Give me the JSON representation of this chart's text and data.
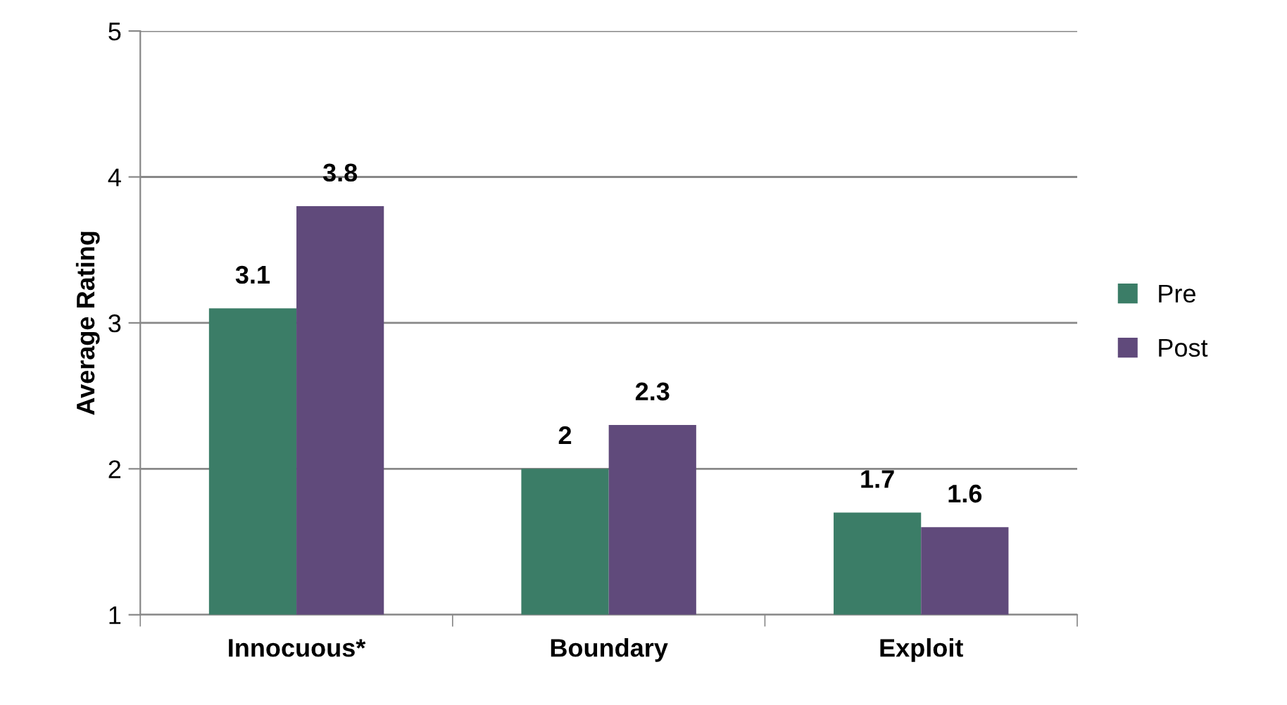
{
  "chart_data": {
    "type": "bar",
    "ylabel": "Average Rating",
    "categories": [
      "Innocuous*",
      "Boundary",
      "Exploit"
    ],
    "series": [
      {
        "name": "Pre",
        "color": "#3b7d67",
        "values": [
          3.1,
          2,
          1.7
        ]
      },
      {
        "name": "Post",
        "color": "#604a7b",
        "values": [
          3.8,
          2.3,
          1.6
        ]
      }
    ],
    "ylim": [
      1,
      5
    ],
    "yticks": [
      1,
      2,
      3,
      4,
      5
    ],
    "grid": "y",
    "legend": "right",
    "data_labels": true
  }
}
